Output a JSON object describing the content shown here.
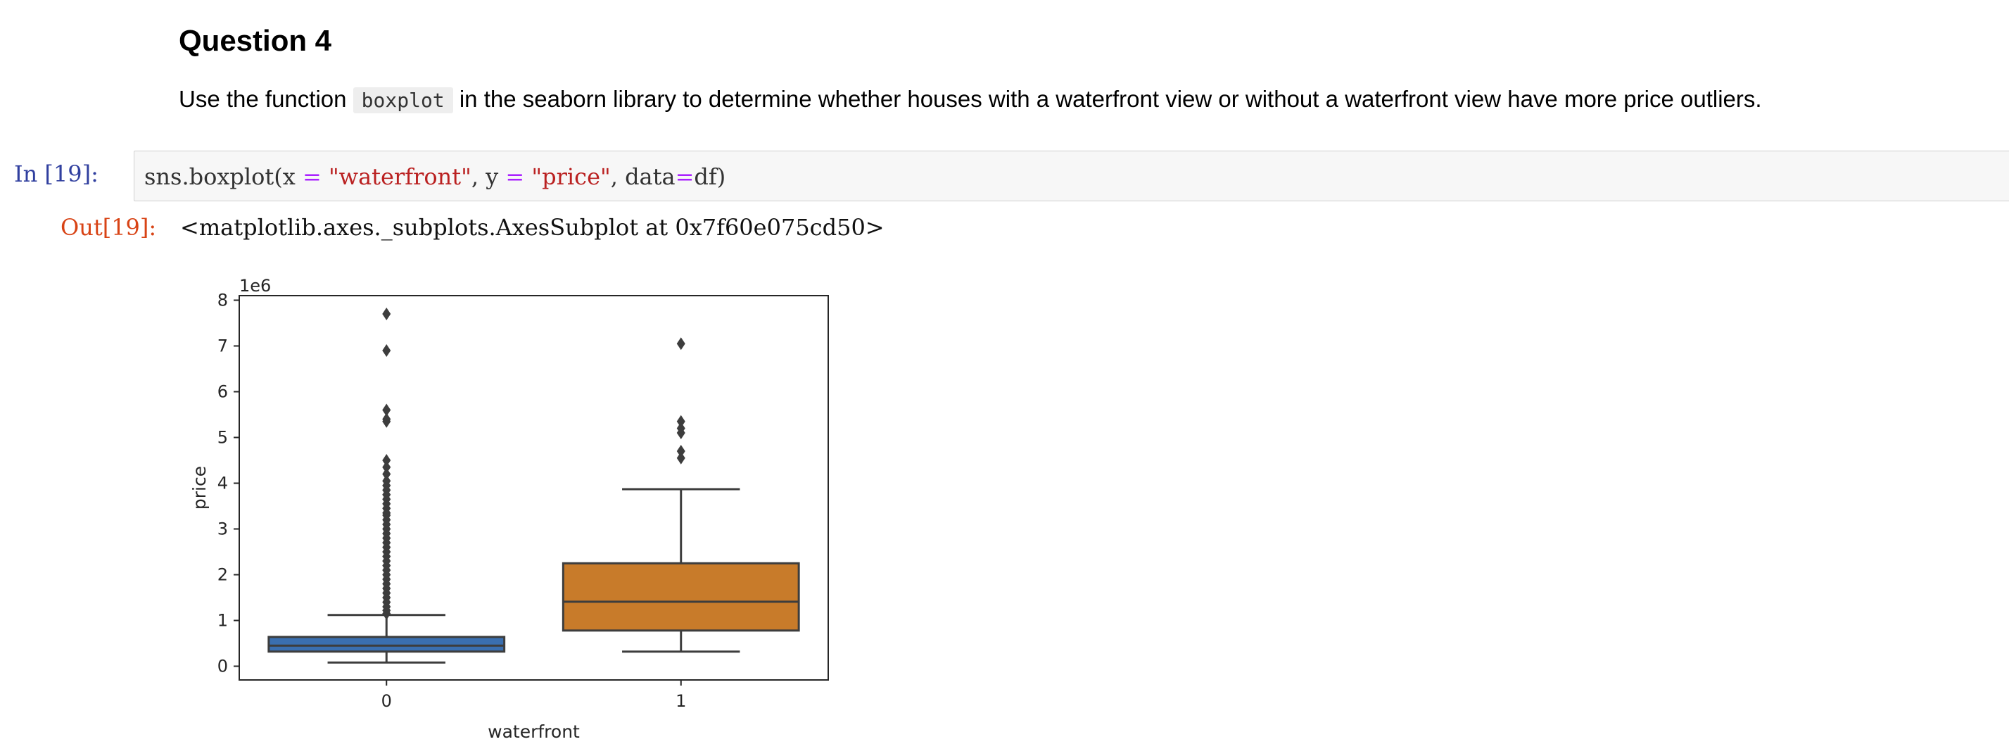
{
  "markdown": {
    "heading": "Question 4",
    "para_before": "Use the function ",
    "inline_code": "boxplot",
    "para_after": " in the seaborn library to determine whether houses with a waterfront view or without a waterfront view have more price outliers."
  },
  "input_cell": {
    "prompt": "In [19]:",
    "code_tokens": [
      {
        "t": "sns.boxplot(x ",
        "c": ""
      },
      {
        "t": "=",
        "c": "tk-op"
      },
      {
        "t": " ",
        "c": ""
      },
      {
        "t": "\"waterfront\"",
        "c": "tk-str"
      },
      {
        "t": ", y ",
        "c": ""
      },
      {
        "t": "=",
        "c": "tk-op"
      },
      {
        "t": " ",
        "c": ""
      },
      {
        "t": "\"price\"",
        "c": "tk-str"
      },
      {
        "t": ", data",
        "c": ""
      },
      {
        "t": "=",
        "c": "tk-op"
      },
      {
        "t": "df)",
        "c": ""
      }
    ]
  },
  "output_cell": {
    "prompt": "Out[19]:",
    "text": "<matplotlib.axes._subplots.AxesSubplot at 0x7f60e075cd50>"
  },
  "chart_data": {
    "type": "box",
    "xlabel": "waterfront",
    "ylabel": "price",
    "offset_label": "1e6",
    "yticks": [
      0,
      1,
      2,
      3,
      4,
      5,
      6,
      7,
      8
    ],
    "ylim": [
      -0.3,
      8.1
    ],
    "categories": [
      "0",
      "1"
    ],
    "colors": [
      "#3a6fb0",
      "#c87b2a"
    ],
    "edge_color": "#3d3d3d",
    "boxes": [
      {
        "category": "0",
        "whisker_low": 0.08,
        "q1": 0.32,
        "median": 0.45,
        "q3": 0.64,
        "whisker_high": 1.12,
        "outliers": [
          7.7,
          6.9,
          5.6,
          5.4,
          5.35,
          4.5,
          4.35,
          4.2,
          4.05,
          3.95,
          3.85,
          3.75,
          3.65,
          3.55,
          3.45,
          3.35,
          3.3,
          3.2,
          3.1,
          3.0,
          2.9,
          2.8,
          2.7,
          2.6,
          2.5,
          2.4,
          2.3,
          2.2,
          2.1,
          2.0,
          1.9,
          1.8,
          1.7,
          1.6,
          1.5,
          1.4,
          1.3,
          1.22,
          1.15
        ]
      },
      {
        "category": "1",
        "whisker_low": 0.32,
        "q1": 0.78,
        "median": 1.41,
        "q3": 2.25,
        "whisker_high": 3.87,
        "outliers": [
          7.05,
          5.35,
          5.2,
          5.1,
          4.7,
          4.55
        ]
      }
    ]
  }
}
